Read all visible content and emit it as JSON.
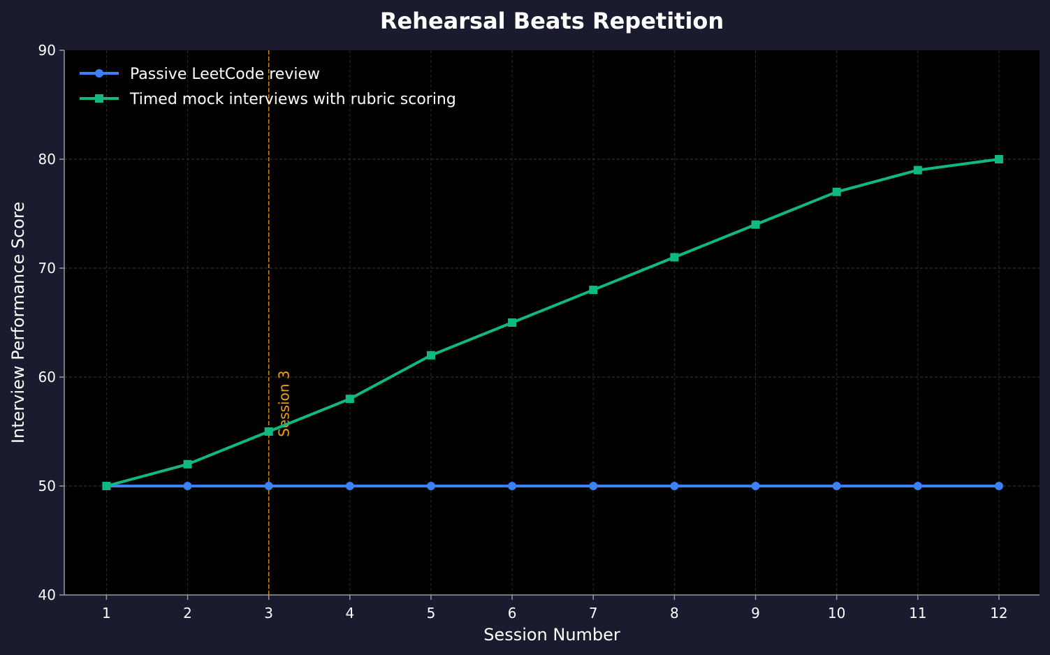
{
  "chart_data": {
    "type": "line",
    "title": "Rehearsal Beats Repetition",
    "xlabel": "Session Number",
    "ylabel": "Interview Performance Score",
    "x": [
      1,
      2,
      3,
      4,
      5,
      6,
      7,
      8,
      9,
      10,
      11,
      12
    ],
    "xlim": [
      0.48,
      12.5
    ],
    "ylim": [
      40,
      90
    ],
    "yticks": [
      40,
      50,
      60,
      70,
      80,
      90
    ],
    "grid": true,
    "legend_position": "top-left",
    "series": [
      {
        "name": "Passive LeetCode review",
        "color": "#3b82f6",
        "marker": "circle",
        "values": [
          50,
          50,
          50,
          50,
          50,
          50,
          50,
          50,
          50,
          50,
          50,
          50
        ]
      },
      {
        "name": "Timed mock interviews with rubric scoring",
        "color": "#10b981",
        "marker": "square",
        "values": [
          50,
          52,
          55,
          58,
          62,
          65,
          68,
          71,
          74,
          77,
          79,
          80
        ]
      }
    ],
    "annotations": [
      {
        "x": 3,
        "label": "Session 3",
        "color": "#f59e0b",
        "style": "dashed-vertical"
      }
    ],
    "colors": {
      "background": "#1a1b2e",
      "plot_background": "#000000",
      "grid": "#3a3a3a",
      "axis": "#999999",
      "text": "#ffffff"
    }
  }
}
